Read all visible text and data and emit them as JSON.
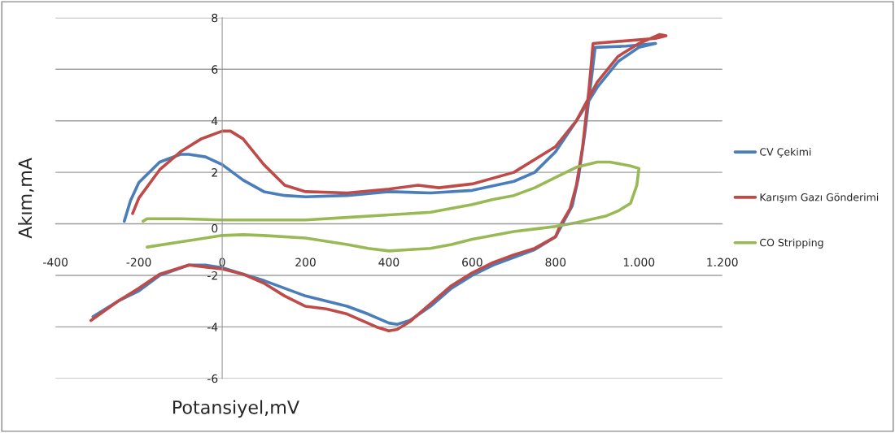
{
  "chart_data": {
    "type": "line",
    "xlabel": "Potansiyel,mV",
    "ylabel": "Akım,mA",
    "xlim": [
      -400,
      1200
    ],
    "xticks": [
      -400,
      -200,
      0,
      200,
      400,
      600,
      800,
      {
        "value": 1000,
        "label": "1.000"
      },
      {
        "value": 1200,
        "label": "1.200"
      }
    ],
    "ylim": [
      -6,
      8
    ],
    "yticks": [
      -6,
      -4,
      -2,
      0,
      2,
      4,
      6,
      8
    ],
    "grid": "y",
    "legend": "right",
    "marker": "none",
    "line_style": "solid",
    "series": [
      {
        "name": "CV Çekimi",
        "color": "#4a7ebb",
        "x": [
          -235,
          -220,
          -200,
          -150,
          -100,
          -80,
          -40,
          0,
          50,
          100,
          150,
          200,
          300,
          400,
          500,
          600,
          700,
          750,
          800,
          850,
          900,
          950,
          1000,
          1040,
          970,
          895,
          885,
          870,
          855,
          840,
          820,
          800,
          750,
          700,
          650,
          600,
          550,
          500,
          450,
          420,
          400,
          350,
          300,
          200,
          100,
          50,
          0,
          -40,
          -80,
          -150,
          -200,
          -250,
          -310
        ],
        "values": [
          0.1,
          0.9,
          1.6,
          2.4,
          2.7,
          2.7,
          2.6,
          2.3,
          1.7,
          1.25,
          1.1,
          1.05,
          1.1,
          1.25,
          1.2,
          1.3,
          1.65,
          2.0,
          2.8,
          4.0,
          5.3,
          6.3,
          6.85,
          7.0,
          6.9,
          6.85,
          5.5,
          3.5,
          1.8,
          0.7,
          0.1,
          -0.5,
          -1.0,
          -1.3,
          -1.6,
          -2.0,
          -2.5,
          -3.2,
          -3.75,
          -3.9,
          -3.85,
          -3.5,
          -3.2,
          -2.8,
          -2.2,
          -1.95,
          -1.7,
          -1.6,
          -1.6,
          -2.0,
          -2.6,
          -3.0,
          -3.6
        ]
      },
      {
        "name": "Karışım Gazı Gönderimi",
        "color": "#be4b48",
        "x": [
          -215,
          -200,
          -150,
          -100,
          -50,
          0,
          20,
          50,
          100,
          150,
          200,
          300,
          400,
          470,
          520,
          600,
          700,
          800,
          850,
          900,
          950,
          1000,
          1050,
          1065,
          1040,
          890,
          880,
          865,
          850,
          835,
          810,
          800,
          750,
          700,
          650,
          600,
          550,
          500,
          450,
          420,
          400,
          370,
          300,
          250,
          200,
          150,
          100,
          50,
          0,
          -80,
          -150,
          -200,
          -250,
          -315
        ],
        "values": [
          0.4,
          1.0,
          2.1,
          2.8,
          3.3,
          3.6,
          3.6,
          3.3,
          2.3,
          1.5,
          1.25,
          1.2,
          1.35,
          1.5,
          1.4,
          1.55,
          2.0,
          3.0,
          4.0,
          5.5,
          6.5,
          7.0,
          7.35,
          7.3,
          7.2,
          7.0,
          5.2,
          3.0,
          1.5,
          0.6,
          -0.1,
          -0.5,
          -0.95,
          -1.2,
          -1.5,
          -1.9,
          -2.4,
          -3.1,
          -3.8,
          -4.1,
          -4.15,
          -4.0,
          -3.5,
          -3.3,
          -3.2,
          -2.8,
          -2.3,
          -1.95,
          -1.75,
          -1.6,
          -1.95,
          -2.5,
          -3.0,
          -3.75
        ]
      },
      {
        "name": "CO Stripping",
        "color": "#98b954",
        "x": [
          -190,
          -180,
          -100,
          0,
          100,
          200,
          300,
          400,
          500,
          550,
          600,
          650,
          700,
          750,
          800,
          850,
          900,
          930,
          980,
          1000,
          995,
          980,
          950,
          920,
          850,
          800,
          750,
          700,
          650,
          600,
          550,
          500,
          450,
          400,
          350,
          300,
          200,
          100,
          50,
          0,
          -100,
          -180
        ],
        "values": [
          0.1,
          0.2,
          0.2,
          0.15,
          0.15,
          0.15,
          0.25,
          0.35,
          0.45,
          0.6,
          0.75,
          0.95,
          1.1,
          1.4,
          1.8,
          2.2,
          2.4,
          2.4,
          2.25,
          2.15,
          1.5,
          0.8,
          0.5,
          0.3,
          0.05,
          -0.1,
          -0.2,
          -0.3,
          -0.45,
          -0.6,
          -0.8,
          -0.95,
          -1.0,
          -1.05,
          -0.95,
          -0.8,
          -0.55,
          -0.45,
          -0.42,
          -0.45,
          -0.7,
          -0.9
        ]
      }
    ]
  }
}
